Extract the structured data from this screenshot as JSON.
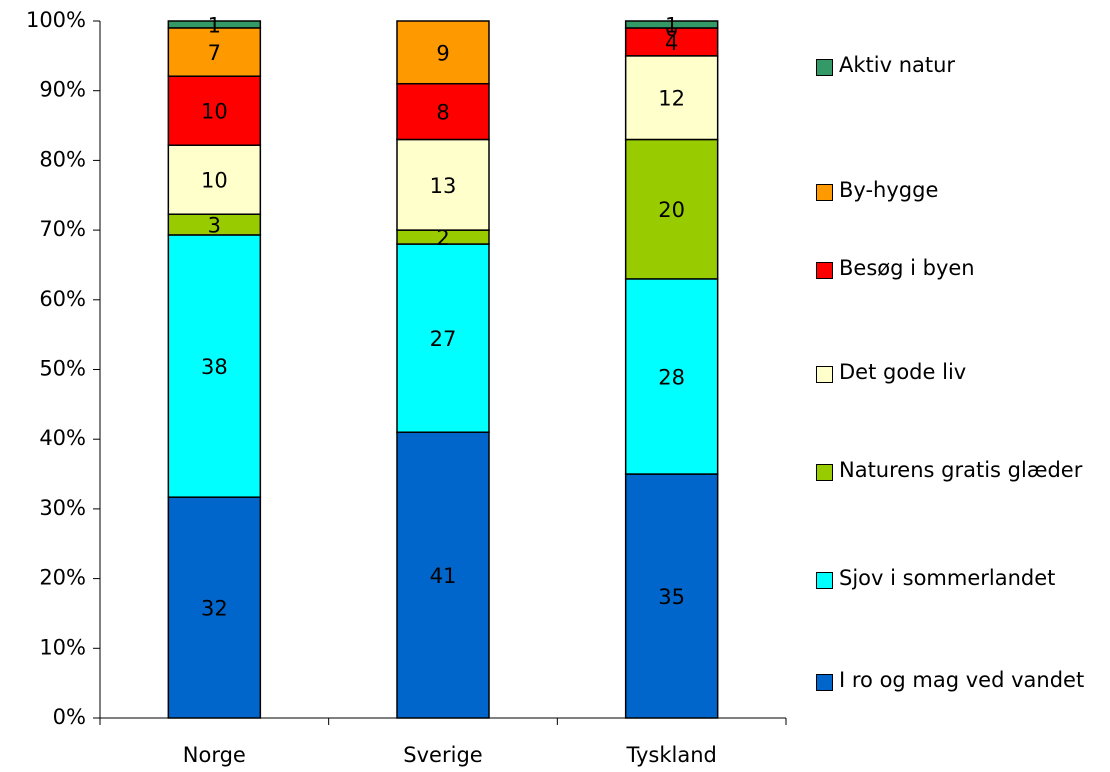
{
  "chart_data": {
    "type": "bar",
    "stacked": "percent",
    "categories": [
      "Norge",
      "Sverige",
      "Tyskland"
    ],
    "series": [
      {
        "name": "I ro og mag ved vandet",
        "color": "#0066cc",
        "values": [
          32,
          41,
          35
        ]
      },
      {
        "name": "Sjov i sommerlandet",
        "color": "#00ffff",
        "values": [
          38,
          27,
          28
        ]
      },
      {
        "name": "Naturens gratis glæder",
        "color": "#99cc00",
        "values": [
          3,
          2,
          20
        ]
      },
      {
        "name": "Det gode liv",
        "color": "#ffffcc",
        "values": [
          10,
          13,
          12
        ]
      },
      {
        "name": "Besøg i byen",
        "color": "#ff0000",
        "values": [
          10,
          8,
          4
        ]
      },
      {
        "name": "By-hygge",
        "color": "#ff9900",
        "values": [
          7,
          9,
          0
        ]
      },
      {
        "name": "Aktiv natur",
        "color": "#339966",
        "values": [
          1,
          null,
          1
        ]
      }
    ],
    "ylim": [
      0,
      100
    ],
    "yticks": [
      {
        "value": 0,
        "label": "0%"
      },
      {
        "value": 10,
        "label": "10%"
      },
      {
        "value": 20,
        "label": "20%"
      },
      {
        "value": 30,
        "label": "30%"
      },
      {
        "value": 40,
        "label": "40%"
      },
      {
        "value": 50,
        "label": "50%"
      },
      {
        "value": 60,
        "label": "60%"
      },
      {
        "value": 70,
        "label": "70%"
      },
      {
        "value": 80,
        "label": "80%"
      },
      {
        "value": 90,
        "label": "90%"
      },
      {
        "value": 100,
        "label": "100%"
      }
    ],
    "grid": false,
    "legend": "right"
  }
}
